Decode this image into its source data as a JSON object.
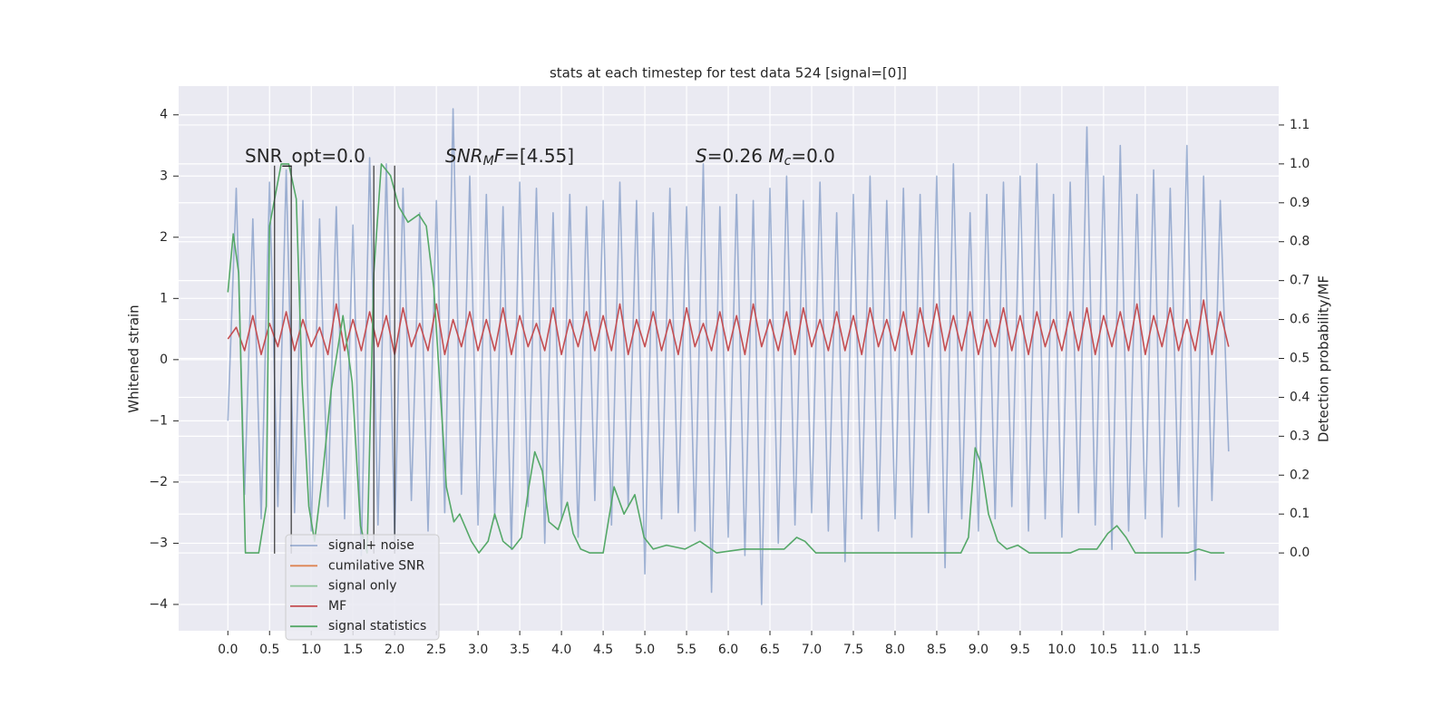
{
  "chart_data": {
    "type": "line",
    "title": "stats at each timestep for test data 524 [signal=[0]]",
    "y_label": "Whitened strain",
    "y2_label": "Detection probability/MF",
    "xlim": [
      -0.59,
      12.6
    ],
    "ylim": [
      -4.43,
      4.47
    ],
    "y2lim": [
      -0.2,
      1.2
    ],
    "grid": true,
    "legend": "lower left",
    "xticks": [
      {
        "value": 0,
        "label": "0.0"
      },
      0.5,
      {
        "value": 1,
        "label": "1.0"
      },
      1.5,
      {
        "value": 2,
        "label": "2.0"
      },
      2.5,
      {
        "value": 3,
        "label": "3.0"
      },
      3.5,
      {
        "value": 4,
        "label": "4.0"
      },
      4.5,
      {
        "value": 5,
        "label": "5.0"
      },
      5.5,
      {
        "value": 6,
        "label": "6.0"
      },
      6.5,
      {
        "value": 7,
        "label": "7.0"
      },
      7.5,
      {
        "value": 8,
        "label": "8.0"
      },
      8.5,
      {
        "value": 9,
        "label": "9.0"
      },
      9.5,
      {
        "value": 10,
        "label": "10.0"
      },
      10.5,
      {
        "value": 11,
        "label": "11.0"
      },
      11.5
    ],
    "yticks": [
      {
        "value": -4,
        "label": "−4"
      },
      {
        "value": -3,
        "label": "−3"
      },
      {
        "value": -2,
        "label": "−2"
      },
      {
        "value": -1,
        "label": "−1"
      },
      0,
      1,
      2,
      3,
      4
    ],
    "y2ticks": [
      {
        "value": 0,
        "label": "0.0"
      },
      0.1,
      0.2,
      0.3,
      0.4,
      0.5,
      0.6,
      0.7,
      0.8,
      0.9,
      {
        "value": 1,
        "label": "1.0"
      },
      1.1
    ],
    "annotations": [
      {
        "parts": [
          {
            "text": "SNR_opt=0.0"
          }
        ]
      },
      {
        "parts": [
          {
            "text": "SNR",
            "italic": true
          },
          {
            "text": "M",
            "italic": true,
            "sub": true
          },
          {
            "text": "F",
            "italic": true
          },
          {
            "text": "=[4.55]"
          }
        ]
      },
      {
        "parts": [
          {
            "text": "S",
            "italic": true
          },
          {
            "text": "=0.26   "
          },
          {
            "text": "M",
            "italic": true
          },
          {
            "text": "c",
            "italic": true,
            "sub": true
          },
          {
            "text": "=0.0"
          }
        ]
      }
    ],
    "vlines": {
      "x": [
        0.56,
        0.76,
        1.75,
        2.0
      ],
      "ymin": -3.17,
      "ymax": 3.17,
      "color": "#333333"
    },
    "series": [
      {
        "name": "signal+ noise",
        "color": "#4c72b0",
        "opacity": 0.5,
        "x": [
          0,
          0.1,
          0.2,
          0.3,
          0.4,
          0.5,
          0.6,
          0.7,
          0.8,
          0.9,
          1,
          1.1,
          1.2,
          1.3,
          1.4,
          1.5,
          1.6,
          1.7,
          1.8,
          1.9,
          2,
          2.1,
          2.2,
          2.3,
          2.4,
          2.5,
          2.6,
          2.7,
          2.8,
          2.9,
          3,
          3.1,
          3.2,
          3.3,
          3.4,
          3.5,
          3.6,
          3.7,
          3.8,
          3.9,
          4,
          4.1,
          4.2,
          4.3,
          4.4,
          4.5,
          4.6,
          4.7,
          4.8,
          4.9,
          5,
          5.1,
          5.2,
          5.3,
          5.4,
          5.5,
          5.6,
          5.7,
          5.8,
          5.9,
          6,
          6.1,
          6.2,
          6.3,
          6.4,
          6.5,
          6.6,
          6.7,
          6.8,
          6.9,
          7,
          7.1,
          7.2,
          7.3,
          7.4,
          7.5,
          7.6,
          7.7,
          7.8,
          7.9,
          8,
          8.1,
          8.2,
          8.3,
          8.4,
          8.5,
          8.6,
          8.7,
          8.8,
          8.9,
          9,
          9.1,
          9.2,
          9.3,
          9.4,
          9.5,
          9.6,
          9.7,
          9.8,
          9.9,
          10,
          10.1,
          10.2,
          10.3,
          10.4,
          10.5,
          10.6,
          10.7,
          10.8,
          10.9,
          11,
          11.1,
          11.2,
          11.3,
          11.4,
          11.5,
          11.6,
          11.7,
          11.8,
          11.9,
          12
        ],
        "values": [
          -1.0,
          2.8,
          -2.2,
          2.3,
          -2.6,
          2.9,
          -2.4,
          3.1,
          -2.5,
          2.6,
          -2.8,
          2.3,
          -2.4,
          2.5,
          -2.6,
          2.2,
          -3.2,
          3.3,
          -2.7,
          3.2,
          -2.9,
          2.8,
          -2.3,
          2.4,
          -2.8,
          2.6,
          -2.5,
          4.1,
          -2.2,
          3.0,
          -2.7,
          2.7,
          -2.6,
          2.5,
          -3.1,
          2.9,
          -2.4,
          2.8,
          -3.0,
          2.4,
          -2.6,
          2.7,
          -2.9,
          2.5,
          -2.3,
          2.6,
          -2.7,
          2.9,
          -2.4,
          2.6,
          -3.5,
          2.4,
          -2.6,
          2.8,
          -2.5,
          2.5,
          -2.8,
          3.2,
          -3.8,
          2.5,
          -2.9,
          2.7,
          -3.2,
          2.6,
          -4.0,
          2.8,
          -3.0,
          3.0,
          -2.7,
          2.6,
          -2.5,
          2.9,
          -2.8,
          2.4,
          -3.3,
          2.7,
          -2.6,
          3.0,
          -2.8,
          2.6,
          -2.6,
          2.8,
          -2.9,
          2.7,
          -2.5,
          3.0,
          -3.4,
          3.2,
          -2.6,
          2.4,
          -2.8,
          2.7,
          -2.6,
          2.9,
          -2.4,
          3.0,
          -2.8,
          3.2,
          -2.6,
          2.7,
          -2.9,
          2.9,
          -2.5,
          3.8,
          -2.7,
          3.0,
          -3.1,
          3.5,
          -2.8,
          2.7,
          -2.6,
          3.1,
          -2.9,
          2.8,
          -2.4,
          3.5,
          -3.6,
          3.0,
          -2.3,
          2.6,
          -1.5
        ]
      },
      {
        "name": "cumilative SNR",
        "color": "#dd8452",
        "values": []
      },
      {
        "name": "signal only",
        "color": "#8dc49a",
        "values": []
      },
      {
        "name": "MF",
        "color": "#c44e52",
        "axis": "y2",
        "x": [
          0,
          0.1,
          0.2,
          0.3,
          0.4,
          0.5,
          0.6,
          0.7,
          0.8,
          0.9,
          1,
          1.1,
          1.2,
          1.3,
          1.4,
          1.5,
          1.6,
          1.7,
          1.8,
          1.9,
          2,
          2.1,
          2.2,
          2.3,
          2.4,
          2.5,
          2.6,
          2.7,
          2.8,
          2.9,
          3,
          3.1,
          3.2,
          3.3,
          3.4,
          3.5,
          3.6,
          3.7,
          3.8,
          3.9,
          4,
          4.1,
          4.2,
          4.3,
          4.4,
          4.5,
          4.6,
          4.7,
          4.8,
          4.9,
          5,
          5.1,
          5.2,
          5.3,
          5.4,
          5.5,
          5.6,
          5.7,
          5.8,
          5.9,
          6,
          6.1,
          6.2,
          6.3,
          6.4,
          6.5,
          6.6,
          6.7,
          6.8,
          6.9,
          7,
          7.1,
          7.2,
          7.3,
          7.4,
          7.5,
          7.6,
          7.7,
          7.8,
          7.9,
          8,
          8.1,
          8.2,
          8.3,
          8.4,
          8.5,
          8.6,
          8.7,
          8.8,
          8.9,
          9,
          9.1,
          9.2,
          9.3,
          9.4,
          9.5,
          9.6,
          9.7,
          9.8,
          9.9,
          10,
          10.1,
          10.2,
          10.3,
          10.4,
          10.5,
          10.6,
          10.7,
          10.8,
          10.9,
          11,
          11.1,
          11.2,
          11.3,
          11.4,
          11.5,
          11.6,
          11.7,
          11.8,
          11.9,
          12
        ],
        "values": [
          0.55,
          0.58,
          0.52,
          0.61,
          0.51,
          0.59,
          0.53,
          0.62,
          0.52,
          0.6,
          0.53,
          0.58,
          0.51,
          0.64,
          0.52,
          0.6,
          0.52,
          0.62,
          0.53,
          0.61,
          0.51,
          0.63,
          0.53,
          0.59,
          0.52,
          0.64,
          0.51,
          0.6,
          0.53,
          0.62,
          0.52,
          0.6,
          0.52,
          0.63,
          0.51,
          0.61,
          0.53,
          0.59,
          0.52,
          0.63,
          0.51,
          0.6,
          0.53,
          0.62,
          0.52,
          0.61,
          0.52,
          0.64,
          0.51,
          0.6,
          0.53,
          0.62,
          0.52,
          0.6,
          0.51,
          0.63,
          0.53,
          0.59,
          0.52,
          0.62,
          0.52,
          0.61,
          0.51,
          0.64,
          0.53,
          0.6,
          0.52,
          0.62,
          0.51,
          0.63,
          0.53,
          0.6,
          0.52,
          0.62,
          0.52,
          0.61,
          0.51,
          0.63,
          0.53,
          0.6,
          0.52,
          0.62,
          0.51,
          0.63,
          0.53,
          0.64,
          0.52,
          0.61,
          0.52,
          0.62,
          0.51,
          0.6,
          0.53,
          0.63,
          0.52,
          0.61,
          0.51,
          0.62,
          0.53,
          0.6,
          0.52,
          0.62,
          0.52,
          0.63,
          0.51,
          0.61,
          0.53,
          0.62,
          0.52,
          0.64,
          0.51,
          0.61,
          0.53,
          0.63,
          0.52,
          0.6,
          0.52,
          0.65,
          0.51,
          0.62,
          0.53
        ]
      },
      {
        "name": "signal statistics",
        "color": "#55a868",
        "axis": "y2",
        "x": [
          0,
          0.065,
          0.13,
          0.21,
          0.37,
          0.46,
          0.5,
          0.64,
          0.73,
          0.82,
          0.89,
          0.97,
          1.04,
          1.13,
          1.24,
          1.38,
          1.49,
          1.59,
          1.67,
          1.75,
          1.84,
          1.95,
          2.05,
          2.16,
          2.29,
          2.38,
          2.47,
          2.54,
          2.62,
          2.71,
          2.78,
          2.92,
          3.01,
          3.12,
          3.2,
          3.3,
          3.41,
          3.52,
          3.61,
          3.68,
          3.77,
          3.85,
          3.96,
          4.07,
          4.14,
          4.23,
          4.34,
          4.5,
          4.63,
          4.75,
          4.88,
          4.99,
          5.1,
          5.26,
          5.48,
          5.66,
          5.86,
          6.18,
          6.51,
          6.67,
          6.82,
          6.92,
          7.05,
          8.79,
          8.88,
          8.96,
          9.03,
          9.12,
          9.23,
          9.34,
          9.47,
          9.61,
          10.1,
          10.21,
          10.42,
          10.55,
          10.66,
          10.77,
          10.88,
          11.51,
          11.64,
          11.79,
          11.95
        ],
        "values": [
          0.67,
          0.82,
          0.72,
          0.0,
          0.0,
          0.12,
          0.84,
          1.0,
          1.0,
          0.91,
          0.44,
          0.12,
          0.03,
          0.19,
          0.42,
          0.61,
          0.44,
          0.07,
          0.0,
          0.72,
          1.0,
          0.97,
          0.89,
          0.85,
          0.87,
          0.84,
          0.68,
          0.44,
          0.17,
          0.08,
          0.1,
          0.03,
          0.0,
          0.03,
          0.1,
          0.03,
          0.01,
          0.04,
          0.17,
          0.26,
          0.21,
          0.08,
          0.06,
          0.13,
          0.05,
          0.01,
          0.0,
          0.0,
          0.17,
          0.1,
          0.15,
          0.04,
          0.01,
          0.02,
          0.01,
          0.03,
          0.0,
          0.01,
          0.01,
          0.01,
          0.04,
          0.03,
          0.0,
          0.0,
          0.04,
          0.27,
          0.23,
          0.1,
          0.03,
          0.01,
          0.02,
          0.0,
          0.0,
          0.01,
          0.01,
          0.05,
          0.07,
          0.04,
          0.0,
          0.0,
          0.01,
          0.0,
          0.0
        ]
      }
    ]
  }
}
